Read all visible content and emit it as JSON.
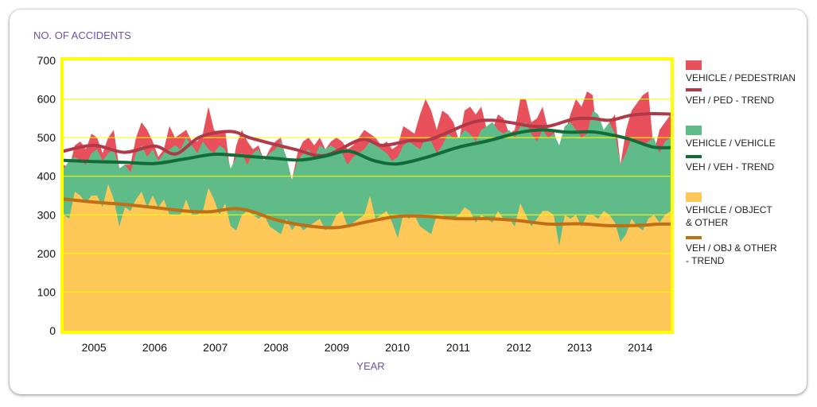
{
  "colors": {
    "pedestrian": "#e8505b",
    "ped_trend": "#b23a48",
    "vehicle": "#5fbb87",
    "veh_trend": "#116c38",
    "object": "#fdc858",
    "obj_trend": "#c06f14",
    "frame": "#ffff00",
    "title": "#7050a8"
  },
  "chart_data": {
    "type": "area",
    "ylabel": "NO. OF ACCIDENTS",
    "xlabel": "YEAR",
    "ylim": [
      0,
      700
    ],
    "yticks": [
      "0",
      "100",
      "200",
      "300",
      "400",
      "500",
      "600",
      "700"
    ],
    "x_start": 2004.5,
    "x_end": 2014.5,
    "xticks": [
      "2005",
      "2006",
      "2007",
      "2008",
      "2009",
      "2010",
      "2011",
      "2012",
      "2013",
      "2014"
    ],
    "grid": "horizontal",
    "legend_position": "right",
    "legend": [
      {
        "key": "ped",
        "kind": "area",
        "lines": [
          "VEHICLE / PEDESTRIAN"
        ]
      },
      {
        "key": "ped_trend",
        "kind": "line",
        "lines": [
          "VEH / PED - TREND"
        ]
      },
      {
        "key": "veh",
        "kind": "area",
        "lines": [
          "VEHICLE / VEHICLE"
        ]
      },
      {
        "key": "veh_trend",
        "kind": "line",
        "lines": [
          "VEH / VEH - TREND"
        ]
      },
      {
        "key": "obj",
        "kind": "area",
        "lines": [
          "VEHICLE / OBJECT",
          "& OTHER"
        ]
      },
      {
        "key": "obj_trend",
        "kind": "line",
        "lines": [
          "VEH / OBJ & OTHER",
          "- TREND"
        ]
      }
    ],
    "series": {
      "object_cumulative": [
        300,
        290,
        360,
        350,
        330,
        350,
        350,
        320,
        380,
        340,
        270,
        320,
        310,
        340,
        360,
        320,
        350,
        320,
        340,
        300,
        300,
        300,
        340,
        300,
        300,
        310,
        370,
        340,
        300,
        330,
        270,
        260,
        300,
        310,
        300,
        290,
        300,
        270,
        260,
        250,
        290,
        260,
        280,
        260,
        270,
        280,
        290,
        260,
        270,
        300,
        310,
        270,
        280,
        290,
        300,
        350,
        290,
        300,
        310,
        280,
        240,
        300,
        290,
        300,
        270,
        260,
        250,
        300,
        300,
        290,
        290,
        300,
        320,
        310,
        280,
        300,
        290,
        280,
        310,
        290,
        290,
        270,
        330,
        300,
        270,
        290,
        310,
        310,
        300,
        220,
        300,
        290,
        300,
        270,
        300,
        300,
        290,
        310,
        300,
        280,
        230,
        250,
        290,
        270,
        260,
        290,
        300,
        280,
        300,
        310
      ],
      "vehicle_cumulative": [
        420,
        440,
        450,
        440,
        430,
        460,
        470,
        440,
        460,
        470,
        420,
        430,
        410,
        460,
        480,
        450,
        470,
        440,
        460,
        470,
        480,
        470,
        500,
        480,
        460,
        490,
        470,
        460,
        480,
        470,
        420,
        450,
        460,
        430,
        460,
        470,
        440,
        460,
        470,
        490,
        450,
        390,
        440,
        460,
        470,
        450,
        480,
        470,
        480,
        470,
        460,
        430,
        450,
        460,
        470,
        490,
        480,
        470,
        460,
        440,
        450,
        480,
        490,
        480,
        470,
        500,
        490,
        460,
        480,
        510,
        500,
        500,
        520,
        510,
        490,
        520,
        530,
        540,
        520,
        510,
        520,
        500,
        530,
        540,
        510,
        490,
        520,
        500,
        510,
        480,
        530,
        540,
        520,
        500,
        510,
        570,
        560,
        520,
        540,
        510,
        430,
        460,
        500,
        490,
        480,
        490,
        500,
        460,
        490,
        500
      ],
      "pedestrian_cumulative": [
        430,
        420,
        480,
        490,
        470,
        510,
        500,
        460,
        500,
        520,
        420,
        430,
        430,
        500,
        540,
        520,
        490,
        450,
        470,
        530,
        500,
        510,
        520,
        490,
        490,
        510,
        580,
        520,
        510,
        520,
        400,
        480,
        520,
        490,
        470,
        480,
        440,
        470,
        490,
        500,
        440,
        390,
        460,
        490,
        500,
        480,
        500,
        470,
        490,
        500,
        490,
        470,
        480,
        500,
        520,
        510,
        500,
        480,
        490,
        470,
        480,
        530,
        520,
        510,
        560,
        600,
        570,
        520,
        570,
        560,
        540,
        490,
        570,
        580,
        560,
        580,
        520,
        520,
        560,
        550,
        510,
        520,
        600,
        600,
        540,
        550,
        580,
        520,
        520,
        460,
        510,
        560,
        600,
        580,
        620,
        610,
        480,
        490,
        540,
        560,
        430,
        520,
        570,
        590,
        610,
        620,
        460,
        520,
        540,
        560
      ],
      "ped_trend": [
        [
          2004.5,
          465
        ],
        [
          2005.0,
          480
        ],
        [
          2005.5,
          462
        ],
        [
          2006.0,
          478
        ],
        [
          2006.35,
          458
        ],
        [
          2006.75,
          502
        ],
        [
          2007.25,
          516
        ],
        [
          2007.6,
          498
        ],
        [
          2008.3,
          470
        ],
        [
          2008.8,
          454
        ],
        [
          2009.4,
          495
        ],
        [
          2009.75,
          480
        ],
        [
          2010.2,
          492
        ],
        [
          2010.55,
          496
        ],
        [
          2011.2,
          538
        ],
        [
          2011.55,
          545
        ],
        [
          2011.9,
          538
        ],
        [
          2012.2,
          530
        ],
        [
          2012.5,
          530
        ],
        [
          2012.9,
          548
        ],
        [
          2013.2,
          550
        ],
        [
          2013.5,
          545
        ],
        [
          2013.85,
          558
        ],
        [
          2014.2,
          562
        ],
        [
          2014.5,
          561
        ]
      ],
      "veh_trend": [
        [
          2004.5,
          441
        ],
        [
          2005.0,
          438
        ],
        [
          2005.5,
          436
        ],
        [
          2006.0,
          433
        ],
        [
          2006.5,
          445
        ],
        [
          2007.0,
          457
        ],
        [
          2007.5,
          452
        ],
        [
          2008.0,
          446
        ],
        [
          2008.4,
          442
        ],
        [
          2008.8,
          452
        ],
        [
          2009.2,
          465
        ],
        [
          2009.6,
          441
        ],
        [
          2010.0,
          432
        ],
        [
          2010.5,
          450
        ],
        [
          2011.0,
          475
        ],
        [
          2011.5,
          492
        ],
        [
          2012.0,
          513
        ],
        [
          2012.4,
          520
        ],
        [
          2012.8,
          514
        ],
        [
          2013.2,
          515
        ],
        [
          2013.5,
          508
        ],
        [
          2013.8,
          497
        ],
        [
          2014.2,
          476
        ],
        [
          2014.5,
          474
        ]
      ],
      "obj_trend": [
        [
          2004.5,
          341
        ],
        [
          2005.0,
          333
        ],
        [
          2005.5,
          327
        ],
        [
          2006.0,
          319
        ],
        [
          2006.5,
          310
        ],
        [
          2006.9,
          308
        ],
        [
          2007.3,
          316
        ],
        [
          2007.6,
          309
        ],
        [
          2008.0,
          287
        ],
        [
          2008.5,
          272
        ],
        [
          2009.0,
          267
        ],
        [
          2009.5,
          282
        ],
        [
          2010.0,
          296
        ],
        [
          2010.5,
          296
        ],
        [
          2011.0,
          290
        ],
        [
          2011.5,
          290
        ],
        [
          2012.0,
          285
        ],
        [
          2012.5,
          276
        ],
        [
          2013.0,
          277
        ],
        [
          2013.5,
          272
        ],
        [
          2014.0,
          273
        ],
        [
          2014.3,
          276
        ],
        [
          2014.5,
          276
        ]
      ]
    }
  }
}
